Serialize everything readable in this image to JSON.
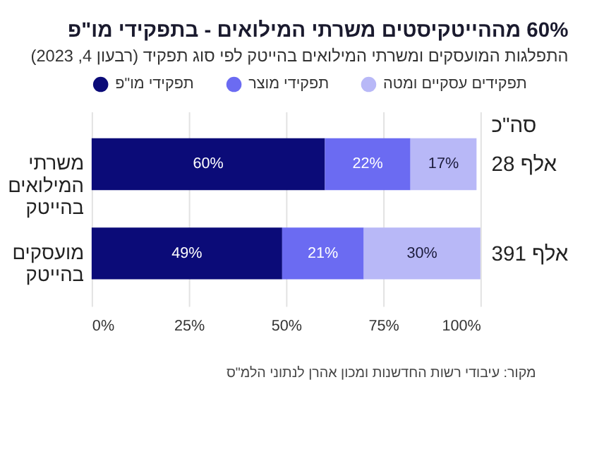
{
  "chart_data": {
    "type": "bar",
    "orientation": "horizontal",
    "stacked": true,
    "title": "60% מההייטקיסטים משרתי המילואים - בתפקידי מו\"פ",
    "subtitle": "התפלגות המועסקים ומשרתי המילואים בהייטק לפי סוג תפקיד (רבעון 4, 2023)",
    "categories": [
      "משרתי המילואים בהייטק",
      "מועסקים בהייטק"
    ],
    "series": [
      {
        "name": "תפקידי מו\"פ",
        "color": "#0b0b78",
        "values": [
          60,
          49
        ],
        "value_labels": [
          "60%",
          "49%"
        ]
      },
      {
        "name": "תפקידי מוצר",
        "color": "#6b6bf2",
        "values": [
          22,
          21
        ],
        "value_labels": [
          "22%",
          "21%"
        ]
      },
      {
        "name": "תפקידים עסקיים ומטה",
        "color": "#b8b8f7",
        "values": [
          17,
          30
        ],
        "value_labels": [
          "17%",
          "30%"
        ]
      }
    ],
    "xlim": [
      0,
      100
    ],
    "xticks": [
      {
        "value": 0,
        "label": "0%"
      },
      {
        "value": 25,
        "label": "25%"
      },
      {
        "value": 50,
        "label": "50%"
      },
      {
        "value": 75,
        "label": "75%"
      },
      {
        "value": 100,
        "label": "100%"
      }
    ],
    "annotations": [
      "סה\"כ",
      {
        "text": "28 אלף",
        "x": 100,
        "y": "משרתי המילואים בהייטק"
      },
      {
        "text": "391 אלף",
        "x": 100,
        "y": "מועסקים בהייטק"
      },
      "מקור: עיבודי רשות החדשנות ומכון אהרן לנתוני הלמ\"ס"
    ],
    "grid": "x",
    "legend": "top"
  }
}
